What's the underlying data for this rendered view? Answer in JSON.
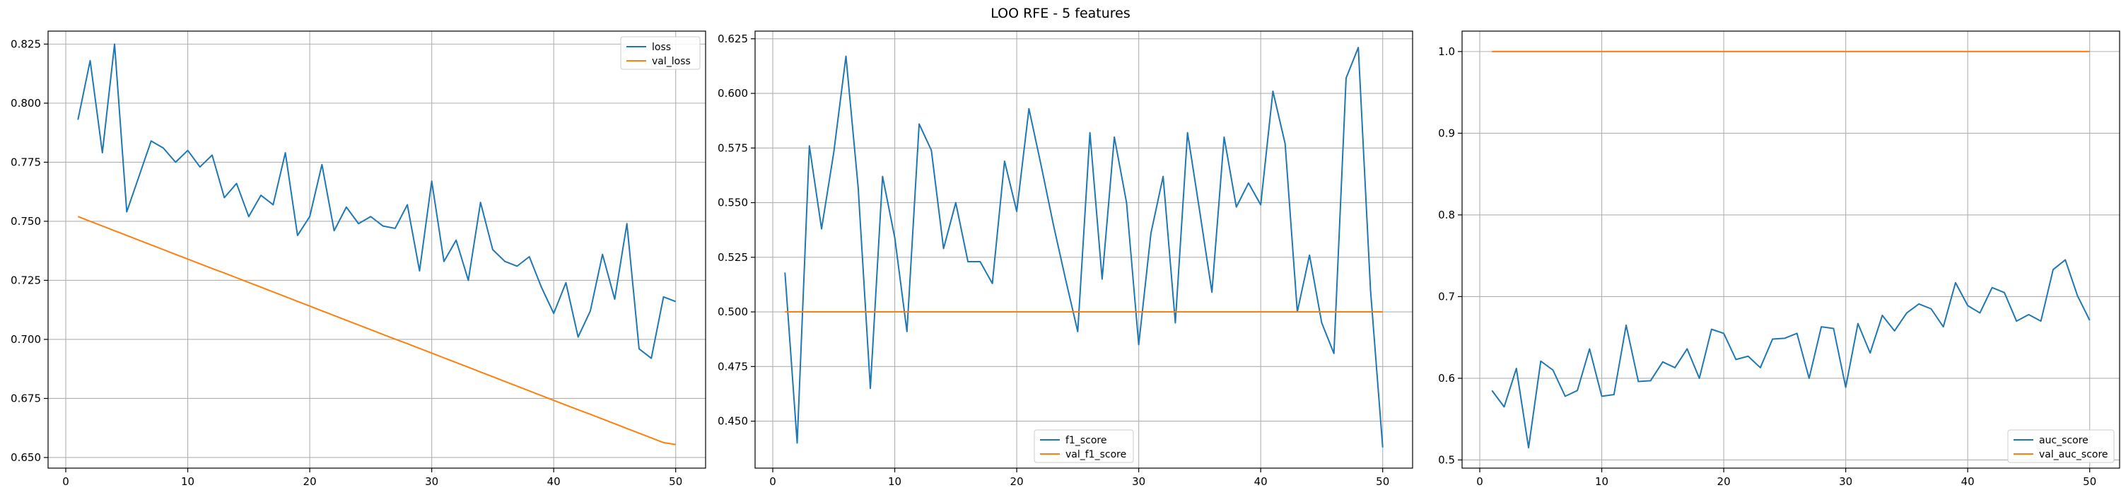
{
  "figure_title": "LOO RFE - 5 features",
  "colors": {
    "series1": "#1f77b4",
    "series2": "#ff7f0e",
    "grid": "#b0b0b0",
    "axes": "#000000"
  },
  "chart_data": [
    {
      "type": "line",
      "title": "",
      "xlabel": "",
      "ylabel": "",
      "xlim": [
        -1.45,
        52.45
      ],
      "ylim": [
        0.6455,
        0.8305
      ],
      "xticks": [
        0,
        10,
        20,
        30,
        40,
        50
      ],
      "yticks": [
        0.65,
        0.675,
        0.7,
        0.725,
        0.75,
        0.775,
        0.8,
        0.825
      ],
      "ytick_decimals": 3,
      "grid": true,
      "legend_loc": "top-right",
      "x": [
        1,
        2,
        3,
        4,
        5,
        6,
        7,
        8,
        9,
        10,
        11,
        12,
        13,
        14,
        15,
        16,
        17,
        18,
        19,
        20,
        21,
        22,
        23,
        24,
        25,
        26,
        27,
        28,
        29,
        30,
        31,
        32,
        33,
        34,
        35,
        36,
        37,
        38,
        39,
        40,
        41,
        42,
        43,
        44,
        45,
        46,
        47,
        48,
        49,
        50
      ],
      "series": [
        {
          "name": "loss",
          "values": [
            0.793,
            0.818,
            0.779,
            0.825,
            0.754,
            0.769,
            0.784,
            0.781,
            0.775,
            0.78,
            0.773,
            0.778,
            0.76,
            0.766,
            0.752,
            0.761,
            0.757,
            0.779,
            0.744,
            0.752,
            0.774,
            0.746,
            0.756,
            0.749,
            0.752,
            0.748,
            0.747,
            0.757,
            0.729,
            0.767,
            0.733,
            0.742,
            0.725,
            0.758,
            0.738,
            0.733,
            0.731,
            0.735,
            0.722,
            0.711,
            0.724,
            0.701,
            0.712,
            0.736,
            0.717,
            0.749,
            0.696,
            0.692,
            0.718,
            0.716
          ]
        },
        {
          "name": "val_loss",
          "values": [
            0.752,
            0.75,
            0.748,
            0.746,
            0.744,
            0.742,
            0.74,
            0.738,
            0.736,
            0.734,
            0.732,
            0.73,
            0.7281,
            0.7261,
            0.7241,
            0.7221,
            0.7201,
            0.7181,
            0.7161,
            0.7141,
            0.7121,
            0.7101,
            0.7081,
            0.7061,
            0.7041,
            0.7021,
            0.7001,
            0.6982,
            0.6962,
            0.6942,
            0.6922,
            0.6902,
            0.6882,
            0.6862,
            0.6842,
            0.6822,
            0.6802,
            0.6782,
            0.6762,
            0.6742,
            0.6722,
            0.6702,
            0.6683,
            0.6663,
            0.6643,
            0.6623,
            0.6603,
            0.6583,
            0.6563,
            0.6555
          ]
        }
      ]
    },
    {
      "type": "line",
      "title": "",
      "xlabel": "",
      "ylabel": "",
      "xlim": [
        -1.45,
        52.45
      ],
      "ylim": [
        0.4285,
        0.6285
      ],
      "xticks": [
        0,
        10,
        20,
        30,
        40,
        50
      ],
      "yticks": [
        0.45,
        0.475,
        0.5,
        0.525,
        0.55,
        0.575,
        0.6,
        0.625
      ],
      "ytick_decimals": 3,
      "grid": true,
      "legend_loc": "bottom-center",
      "x": [
        1,
        2,
        3,
        4,
        5,
        6,
        7,
        8,
        9,
        10,
        11,
        12,
        13,
        14,
        15,
        16,
        17,
        18,
        19,
        20,
        21,
        22,
        23,
        24,
        25,
        26,
        27,
        28,
        29,
        30,
        31,
        32,
        33,
        34,
        35,
        36,
        37,
        38,
        39,
        40,
        41,
        42,
        43,
        44,
        45,
        46,
        47,
        48,
        49,
        50
      ],
      "series": [
        {
          "name": "f1_score",
          "values": [
            0.518,
            0.44,
            0.576,
            0.538,
            0.573,
            0.617,
            0.557,
            0.465,
            0.562,
            0.534,
            0.491,
            0.586,
            0.574,
            0.529,
            0.55,
            0.523,
            0.523,
            0.513,
            0.569,
            0.546,
            0.593,
            0.567,
            0.54,
            0.515,
            0.491,
            0.582,
            0.515,
            0.58,
            0.55,
            0.485,
            0.536,
            0.562,
            0.495,
            0.582,
            0.546,
            0.509,
            0.58,
            0.548,
            0.559,
            0.549,
            0.601,
            0.577,
            0.5,
            0.526,
            0.495,
            0.481,
            0.607,
            0.621,
            0.51,
            0.438
          ]
        },
        {
          "name": "val_f1_score",
          "values": [
            0.5,
            0.5,
            0.5,
            0.5,
            0.5,
            0.5,
            0.5,
            0.5,
            0.5,
            0.5,
            0.5,
            0.5,
            0.5,
            0.5,
            0.5,
            0.5,
            0.5,
            0.5,
            0.5,
            0.5,
            0.5,
            0.5,
            0.5,
            0.5,
            0.5,
            0.5,
            0.5,
            0.5,
            0.5,
            0.5,
            0.5,
            0.5,
            0.5,
            0.5,
            0.5,
            0.5,
            0.5,
            0.5,
            0.5,
            0.5,
            0.5,
            0.5,
            0.5,
            0.5,
            0.5,
            0.5,
            0.5,
            0.5,
            0.5,
            0.5
          ]
        }
      ]
    },
    {
      "type": "line",
      "title": "",
      "xlabel": "",
      "ylabel": "",
      "xlim": [
        -1.45,
        52.45
      ],
      "ylim": [
        0.49,
        1.025
      ],
      "xticks": [
        0,
        10,
        20,
        30,
        40,
        50
      ],
      "yticks": [
        0.5,
        0.6,
        0.7,
        0.8,
        0.9,
        1.0
      ],
      "ytick_decimals": 1,
      "grid": true,
      "legend_loc": "bottom-right",
      "x": [
        1,
        2,
        3,
        4,
        5,
        6,
        7,
        8,
        9,
        10,
        11,
        12,
        13,
        14,
        15,
        16,
        17,
        18,
        19,
        20,
        21,
        22,
        23,
        24,
        25,
        26,
        27,
        28,
        29,
        30,
        31,
        32,
        33,
        34,
        35,
        36,
        37,
        38,
        39,
        40,
        41,
        42,
        43,
        44,
        45,
        46,
        47,
        48,
        49,
        50
      ],
      "series": [
        {
          "name": "auc_score",
          "values": [
            0.585,
            0.565,
            0.612,
            0.515,
            0.621,
            0.61,
            0.578,
            0.585,
            0.636,
            0.578,
            0.58,
            0.665,
            0.596,
            0.597,
            0.62,
            0.613,
            0.636,
            0.6,
            0.66,
            0.655,
            0.623,
            0.627,
            0.613,
            0.648,
            0.649,
            0.655,
            0.6,
            0.663,
            0.661,
            0.589,
            0.667,
            0.631,
            0.677,
            0.658,
            0.68,
            0.691,
            0.685,
            0.663,
            0.717,
            0.689,
            0.68,
            0.711,
            0.705,
            0.67,
            0.678,
            0.67,
            0.733,
            0.745,
            0.701,
            0.671
          ]
        },
        {
          "name": "val_auc_score",
          "values": [
            1.0,
            1.0,
            1.0,
            1.0,
            1.0,
            1.0,
            1.0,
            1.0,
            1.0,
            1.0,
            1.0,
            1.0,
            1.0,
            1.0,
            1.0,
            1.0,
            1.0,
            1.0,
            1.0,
            1.0,
            1.0,
            1.0,
            1.0,
            1.0,
            1.0,
            1.0,
            1.0,
            1.0,
            1.0,
            1.0,
            1.0,
            1.0,
            1.0,
            1.0,
            1.0,
            1.0,
            1.0,
            1.0,
            1.0,
            1.0,
            1.0,
            1.0,
            1.0,
            1.0,
            1.0,
            1.0,
            1.0,
            1.0,
            1.0,
            1.0
          ]
        }
      ]
    }
  ]
}
